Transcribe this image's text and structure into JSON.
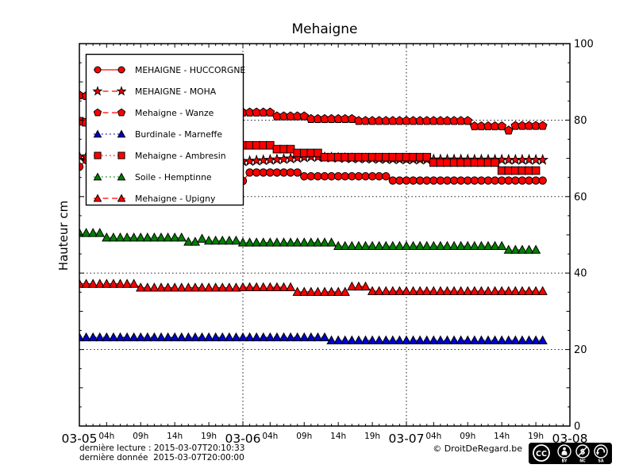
{
  "title": "Mehaigne",
  "footer": {
    "last_reading": "dernière lecture : 2015-03-07T20:10:33",
    "last_data": "dernière donnée  2015-03-07T20:00:00",
    "copyright": "© DroitDeRegard.be",
    "cc_labels": [
      "BY",
      "NC",
      "SA"
    ]
  },
  "chart_data": {
    "type": "line",
    "title": "Mehaigne",
    "xlabel": "",
    "ylabel": "Hauteur cm",
    "ylim": [
      0,
      100
    ],
    "yticks": [
      0,
      20,
      40,
      60,
      80,
      100
    ],
    "xlim_hours": [
      0,
      72
    ],
    "x_day_ticks": [
      {
        "t": 0,
        "label": "03-05"
      },
      {
        "t": 24,
        "label": "03-06"
      },
      {
        "t": 48,
        "label": "03-07"
      },
      {
        "t": 72,
        "label": "03-08"
      }
    ],
    "x_hour_ticks": [
      {
        "t": 4,
        "label": "04h"
      },
      {
        "t": 9,
        "label": "09h"
      },
      {
        "t": 14,
        "label": "14h"
      },
      {
        "t": 19,
        "label": "19h"
      },
      {
        "t": 28,
        "label": "04h"
      },
      {
        "t": 33,
        "label": "09h"
      },
      {
        "t": 38,
        "label": "14h"
      },
      {
        "t": 43,
        "label": "19h"
      },
      {
        "t": 52,
        "label": "04h"
      },
      {
        "t": 57,
        "label": "09h"
      },
      {
        "t": 62,
        "label": "14h"
      },
      {
        "t": 67,
        "label": "19h"
      }
    ],
    "grid": {
      "y_values": [
        20,
        40,
        60,
        80
      ],
      "x_hours": [
        24,
        48
      ],
      "style": "dotted"
    },
    "legend": {
      "position": "upper left"
    },
    "marker_interval_hours": 1,
    "points_note": "t = hours after 2015-03-05 00:00, v = hauteur in cm; markers plotted hourly, values linearly interpolated between listed breakpoints (left early part hidden behind legend)",
    "series": [
      {
        "name": "MEHAIGNE - HUCCORGNE",
        "marker": "circle",
        "color": "#ff0000",
        "linestyle": "solid",
        "points": [
          [
            0,
            67.8
          ],
          [
            1,
            69.6
          ],
          [
            2,
            70.4
          ],
          [
            23,
            64.5
          ],
          [
            24,
            64.1
          ],
          [
            25,
            66.3
          ],
          [
            32,
            66.3
          ],
          [
            33,
            65.3
          ],
          [
            45,
            65.3
          ],
          [
            46,
            64.2
          ],
          [
            68,
            64.2
          ]
        ]
      },
      {
        "name": "MEHAIGNE - MOHA",
        "marker": "star",
        "color": "#ff0000",
        "linestyle": "dashed",
        "points": [
          [
            0,
            70.5
          ],
          [
            24,
            69.2
          ],
          [
            30,
            69.8
          ],
          [
            34,
            70.4
          ],
          [
            40,
            70.0
          ],
          [
            48,
            69.7
          ],
          [
            68,
            69.6
          ]
        ]
      },
      {
        "name": "Mehaigne - Wanze",
        "marker": "pentagon",
        "color": "#ff0000",
        "linestyle": "dashed",
        "points": [
          [
            0,
            86.5
          ],
          [
            24,
            82.0
          ],
          [
            28,
            82.0
          ],
          [
            29,
            81.0
          ],
          [
            33,
            81.0
          ],
          [
            34,
            80.3
          ],
          [
            40,
            80.3
          ],
          [
            41,
            79.8
          ],
          [
            57,
            79.8
          ],
          [
            58,
            78.4
          ],
          [
            62,
            78.4
          ],
          [
            63,
            77.3
          ],
          [
            64,
            78.5
          ],
          [
            68,
            78.5
          ]
        ]
      },
      {
        "name": "Burdinale - Marneffe",
        "marker": "triangle",
        "color": "#0000cc",
        "linestyle": "dotted",
        "points": [
          [
            0,
            23.2
          ],
          [
            36,
            23.2
          ],
          [
            37,
            22.4
          ],
          [
            68,
            22.4
          ]
        ]
      },
      {
        "name": "Mehaigne - Ambresin",
        "marker": "square",
        "color": "#ff0000",
        "linestyle": "dotted",
        "points": [
          [
            0,
            79.7
          ],
          [
            24,
            73.4
          ],
          [
            28,
            73.4
          ],
          [
            29,
            72.4
          ],
          [
            31,
            72.4
          ],
          [
            32,
            71.4
          ],
          [
            35,
            71.4
          ],
          [
            36,
            70.3
          ],
          [
            51,
            70.3
          ],
          [
            52,
            68.9
          ],
          [
            61,
            68.9
          ],
          [
            62,
            66.8
          ],
          [
            67,
            66.8
          ]
        ]
      },
      {
        "name": "Soile - Hemptinne",
        "marker": "triangle",
        "color": "#008000",
        "linestyle": "dotted",
        "points": [
          [
            0,
            50.5
          ],
          [
            3,
            50.5
          ],
          [
            4,
            49.3
          ],
          [
            15,
            49.3
          ],
          [
            16,
            48.2
          ],
          [
            17,
            48.2
          ],
          [
            18,
            49.0
          ],
          [
            19,
            48.5
          ],
          [
            23,
            48.5
          ],
          [
            24,
            48.0
          ],
          [
            37,
            48.0
          ],
          [
            38,
            47.1
          ],
          [
            62,
            47.1
          ],
          [
            63,
            46.1
          ],
          [
            67,
            46.1
          ]
        ]
      },
      {
        "name": "Mehaigne - Upigny",
        "marker": "triangle",
        "color": "#ff0000",
        "linestyle": "dashed",
        "points": [
          [
            0,
            37.2
          ],
          [
            8,
            37.2
          ],
          [
            9,
            36.2
          ],
          [
            23,
            36.2
          ],
          [
            24,
            36.3
          ],
          [
            31,
            36.3
          ],
          [
            32,
            35.1
          ],
          [
            39,
            35.1
          ],
          [
            40,
            36.5
          ],
          [
            42,
            36.5
          ],
          [
            43,
            35.3
          ],
          [
            68,
            35.3
          ]
        ]
      }
    ]
  }
}
